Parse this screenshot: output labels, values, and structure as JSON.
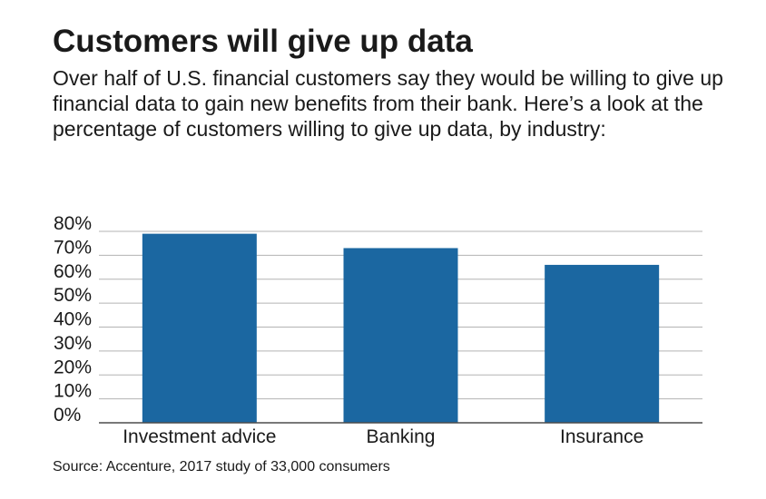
{
  "header": {
    "title": "Customers will give up data",
    "subtitle": "Over half of U.S. financial customers say they would be willing to give up financial data to gain new benefits from their bank. Here’s a look at the percentage of customers willing to give up data, by industry:"
  },
  "footer": {
    "source": "Source: Accenture, 2017 study of 33,000 consumers"
  },
  "colors": {
    "bar": "#1b67a1",
    "grid": "#b3b3b3",
    "axis": "#4d4d4d",
    "text": "#1a1a1a"
  },
  "chart_data": {
    "type": "bar",
    "categories": [
      "Investment advice",
      "Banking",
      "Insurance"
    ],
    "values": [
      79,
      73,
      66
    ],
    "ylim": [
      0,
      80
    ],
    "yticks": [
      0,
      10,
      20,
      30,
      40,
      50,
      60,
      70,
      80
    ],
    "ytick_labels": [
      "0%",
      "10%",
      "20%",
      "30%",
      "40%",
      "50%",
      "60%",
      "70%",
      "80%"
    ],
    "grid": true,
    "legend": "none"
  }
}
